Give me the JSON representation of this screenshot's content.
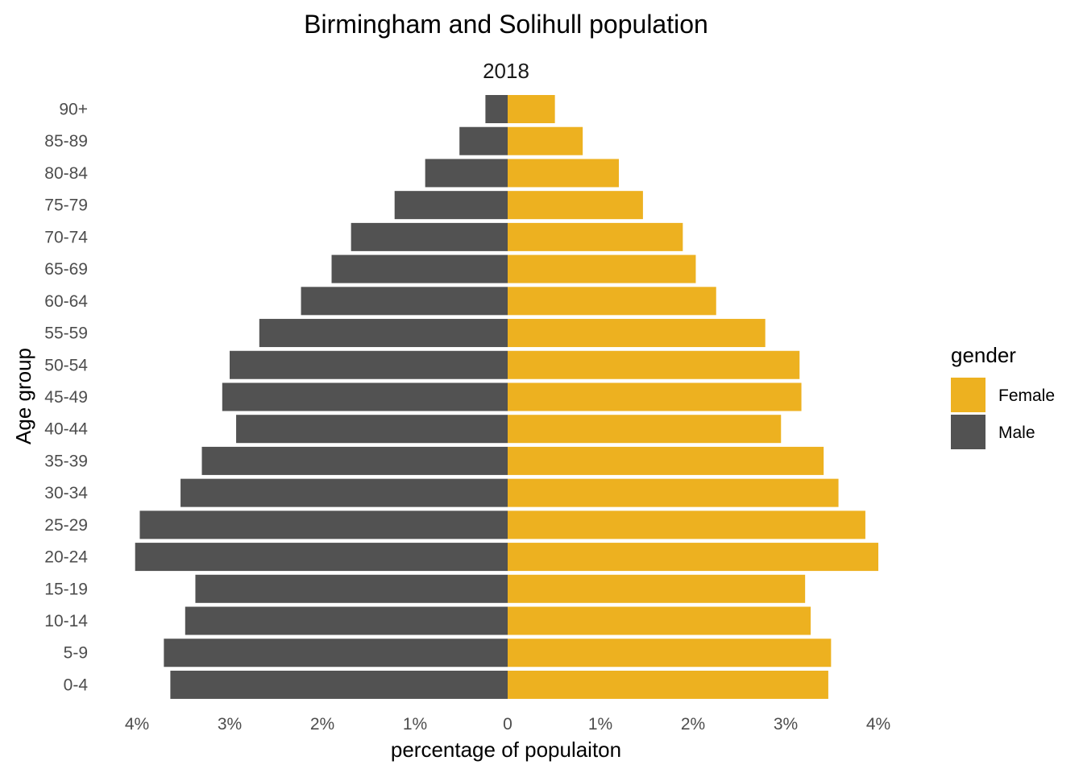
{
  "chart_data": {
    "type": "bar",
    "orientation": "horizontal-population-pyramid",
    "title": "Birmingham and Solihull population",
    "subtitle": "2018",
    "xlabel": "percentage of populaiton",
    "ylabel": "Age group",
    "xlim": [
      -4,
      4
    ],
    "x_ticks": [
      -4,
      -3,
      -2,
      -1,
      0,
      1,
      2,
      3,
      4
    ],
    "x_tick_labels": [
      "4%",
      "3%",
      "2%",
      "1%",
      "0",
      "1%",
      "2%",
      "3%",
      "4%"
    ],
    "categories": [
      "0-4",
      "5-9",
      "10-14",
      "15-19",
      "20-24",
      "25-29",
      "30-34",
      "35-39",
      "40-44",
      "45-49",
      "50-54",
      "55-59",
      "60-64",
      "65-69",
      "70-74",
      "75-79",
      "80-84",
      "85-89",
      "90+"
    ],
    "series": [
      {
        "name": "Female",
        "color": "#EDB120",
        "values": [
          3.46,
          3.49,
          3.27,
          3.21,
          4.0,
          3.86,
          3.57,
          3.41,
          2.95,
          3.17,
          3.15,
          2.78,
          2.25,
          2.03,
          1.89,
          1.46,
          1.2,
          0.81,
          0.51
        ]
      },
      {
        "name": "Male",
        "color": "#525252",
        "values": [
          3.64,
          3.71,
          3.48,
          3.37,
          4.02,
          3.97,
          3.53,
          3.3,
          2.93,
          3.08,
          3.0,
          2.68,
          2.23,
          1.9,
          1.69,
          1.22,
          0.89,
          0.52,
          0.24
        ]
      }
    ],
    "legend": {
      "title": "gender",
      "position": "right",
      "entries": [
        "Female",
        "Male"
      ]
    },
    "grid": false
  }
}
